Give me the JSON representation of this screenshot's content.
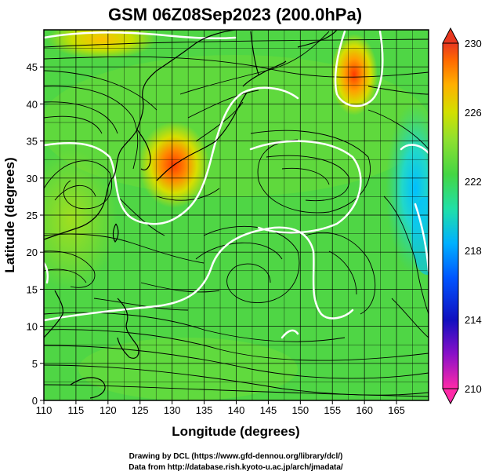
{
  "title": "GSM 06Z08Sep2023 (200.0hPa)",
  "credits": [
    "Drawing by DCL (https://www.gfd-dennou.org/library/dcl/)",
    "Data from http://database.rish.kyoto-u.ac.jp/arch/jmadata/"
  ],
  "chart_data": {
    "type": "heatmap",
    "title": "GSM 06Z08Sep2023 (200.0hPa)",
    "xlabel": "Longitude (degrees)",
    "ylabel": "Latitude  (degrees)",
    "xlim": [
      110,
      170
    ],
    "ylim": [
      0,
      50
    ],
    "x_ticks": [
      110,
      115,
      120,
      125,
      130,
      135,
      140,
      145,
      150,
      155,
      160,
      165
    ],
    "y_ticks": [
      0,
      5,
      10,
      15,
      20,
      25,
      30,
      35,
      40,
      45
    ],
    "grid": true,
    "overlays": [
      "streamlines (wind)",
      "white contours",
      "coastlines"
    ],
    "colorbar": {
      "ticks": [
        210,
        214,
        218,
        222,
        226,
        230
      ],
      "range": [
        210,
        230
      ],
      "colors": [
        "#ff2aa8",
        "#5500cc",
        "#0000cc",
        "#0066ff",
        "#00c8ff",
        "#33e0a0",
        "#4cd94c",
        "#8be234",
        "#d0e000",
        "#ffb000",
        "#ff6a00",
        "#e83820"
      ]
    },
    "warm_maxima": [
      {
        "lon": 130,
        "lat": 32,
        "approx_value": 227.5
      },
      {
        "lon": 157,
        "lat": 46,
        "approx_value": 227
      },
      {
        "lon": 123,
        "lat": 49,
        "approx_value": 225
      }
    ],
    "cool_minima": [
      {
        "lon": 167,
        "lat": 27,
        "approx_value": 219
      }
    ]
  }
}
